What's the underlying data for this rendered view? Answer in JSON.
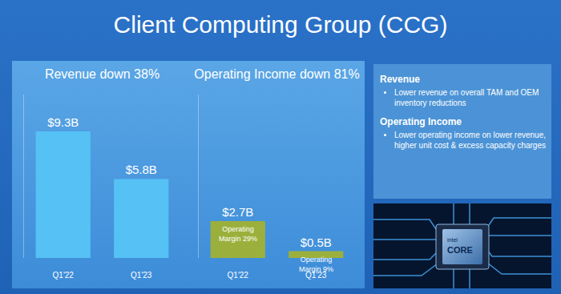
{
  "title": "Client Computing Group (CCG)",
  "chart_data": [
    {
      "type": "bar",
      "title": "Revenue down 38%",
      "categories": [
        "Q1'22",
        "Q1'23"
      ],
      "values": [
        9.3,
        5.8
      ],
      "value_labels": [
        "$9.3B",
        "$5.8B"
      ],
      "color": "#55c1f4",
      "ylim": [
        0,
        12
      ],
      "yticks": [],
      "grid": false,
      "data_labels": true,
      "tick_labels": "x"
    },
    {
      "type": "bar",
      "title": "Operating Income down 81%",
      "categories": [
        "Q1'22",
        "Q1'23"
      ],
      "values": [
        2.7,
        0.5
      ],
      "value_labels": [
        "$2.7B",
        "$0.5B"
      ],
      "color": "#9bb03c",
      "ylim": [
        0,
        12
      ],
      "yticks": [],
      "grid": false,
      "data_labels": true,
      "tick_labels": "x",
      "annotations": [
        {
          "x": "Q1'22",
          "text": "Operating Margin 29%"
        },
        {
          "x": "Q1'23",
          "text": "Operating Margin 9%"
        }
      ]
    }
  ],
  "sidebar": {
    "sections": [
      {
        "heading": "Revenue",
        "bullets": [
          "Lower revenue on overall TAM and OEM inventory reductions"
        ]
      },
      {
        "heading": "Operating Income",
        "bullets": [
          "Lower operating income on lower revenue, higher unit cost & excess capacity charges"
        ]
      }
    ]
  },
  "image": {
    "texts": [
      "intel",
      "CORE"
    ]
  }
}
